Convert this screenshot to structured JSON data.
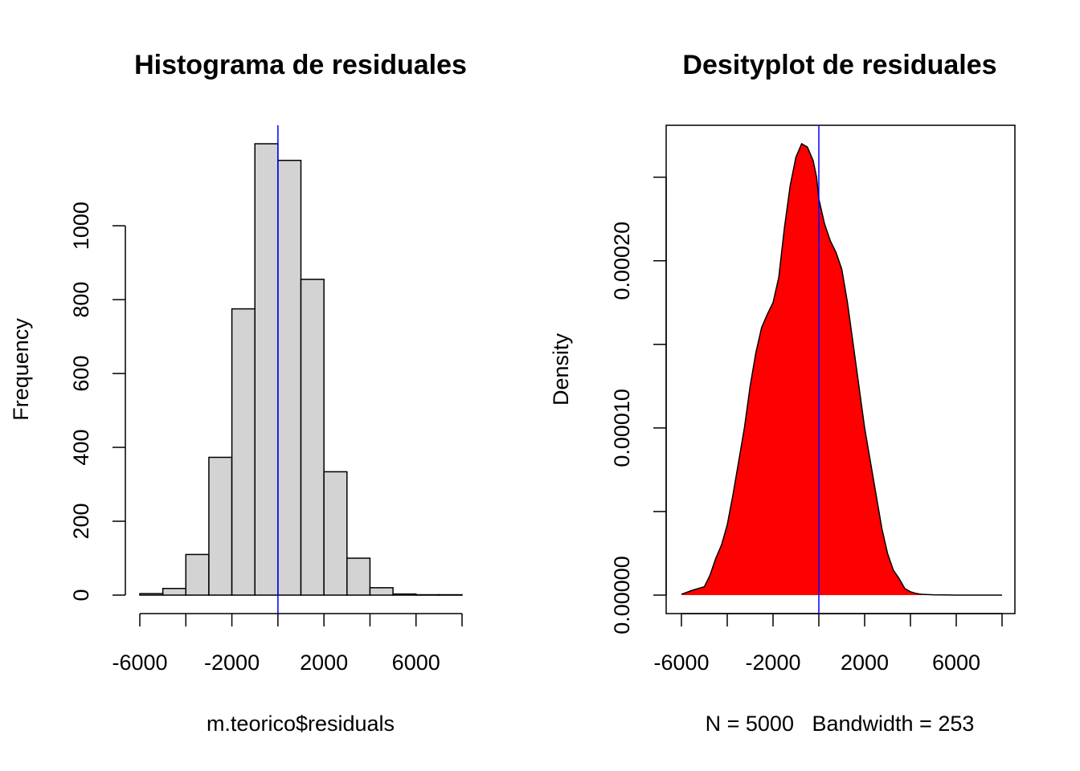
{
  "chart_data": [
    {
      "type": "bar",
      "title": "Histograma de residuales",
      "xlabel": "m.teorico$residuals",
      "ylabel": "Frequency",
      "bin_width": 1000,
      "bin_edges": [
        -6000,
        -5000,
        -4000,
        -3000,
        -2000,
        -1000,
        0,
        1000,
        2000,
        3000,
        4000,
        5000,
        6000,
        7000,
        8000
      ],
      "values": [
        4,
        18,
        110,
        373,
        775,
        1222,
        1177,
        855,
        334,
        100,
        20,
        3,
        1,
        1
      ],
      "xlim": [
        -6000,
        8000
      ],
      "ylim": [
        0,
        1222
      ],
      "x_ticks": [
        -6000,
        -4000,
        -2000,
        0,
        2000,
        4000,
        6000,
        8000
      ],
      "x_tick_labels": [
        "-6000",
        "",
        "-2000",
        "",
        "2000",
        "",
        "6000",
        ""
      ],
      "y_ticks": [
        0,
        200,
        400,
        600,
        800,
        1000
      ],
      "y_tick_labels": [
        "0",
        "200",
        "400",
        "600",
        "800",
        "1000"
      ],
      "vline": 0,
      "colors": {
        "bar_fill": "#d3d3d3",
        "bar_stroke": "#000000",
        "vline": "#0000ff"
      }
    },
    {
      "type": "area",
      "title": "Desityplot de residuales",
      "xlabel": "N = 5000   Bandwidth = 253",
      "ylabel": "Density",
      "x": [
        -6000,
        -5500,
        -5000,
        -4750,
        -4500,
        -4250,
        -4000,
        -3750,
        -3500,
        -3250,
        -3000,
        -2750,
        -2500,
        -2250,
        -2000,
        -1750,
        -1500,
        -1250,
        -1000,
        -750,
        -500,
        -250,
        -100,
        0,
        250,
        500,
        750,
        1000,
        1250,
        1500,
        1750,
        2000,
        2250,
        2500,
        2750,
        3000,
        3250,
        3500,
        3750,
        4000,
        4250,
        4500,
        5000,
        5500,
        6000,
        7000,
        8000
      ],
      "y": [
        5e-07,
        3e-06,
        5e-06,
        1.2e-05,
        2.2e-05,
        3e-05,
        4.2e-05,
        6e-05,
        8e-05,
        0.0001,
        0.000125,
        0.000145,
        0.00016,
        0.000168,
        0.000175,
        0.00019,
        0.00022,
        0.000245,
        0.000262,
        0.00027,
        0.000268,
        0.00026,
        0.00025,
        0.000237,
        0.000222,
        0.000212,
        0.000205,
        0.000195,
        0.000175,
        0.00015,
        0.000125,
        0.0001,
        8e-05,
        6e-05,
        4e-05,
        2.5e-05,
        1.5e-05,
        1e-05,
        4e-06,
        2e-06,
        1e-06,
        5e-07,
        2e-07,
        1e-07,
        0,
        0,
        0
      ],
      "xlim": [
        -6000,
        8000
      ],
      "ylim": [
        0,
        0.00027
      ],
      "x_ticks": [
        -6000,
        -4000,
        -2000,
        0,
        2000,
        4000,
        6000,
        8000
      ],
      "x_tick_labels": [
        "-6000",
        "",
        "-2000",
        "",
        "2000",
        "",
        "6000",
        ""
      ],
      "y_ticks": [
        0,
        5e-05,
        0.0001,
        0.00015,
        0.0002,
        0.00025
      ],
      "y_tick_labels": [
        "0.00000",
        "",
        "0.00010",
        "",
        "0.00020",
        ""
      ],
      "vline": 0,
      "colors": {
        "fill": "#ff0000",
        "stroke": "#000000",
        "vline": "#0000ff"
      }
    }
  ]
}
